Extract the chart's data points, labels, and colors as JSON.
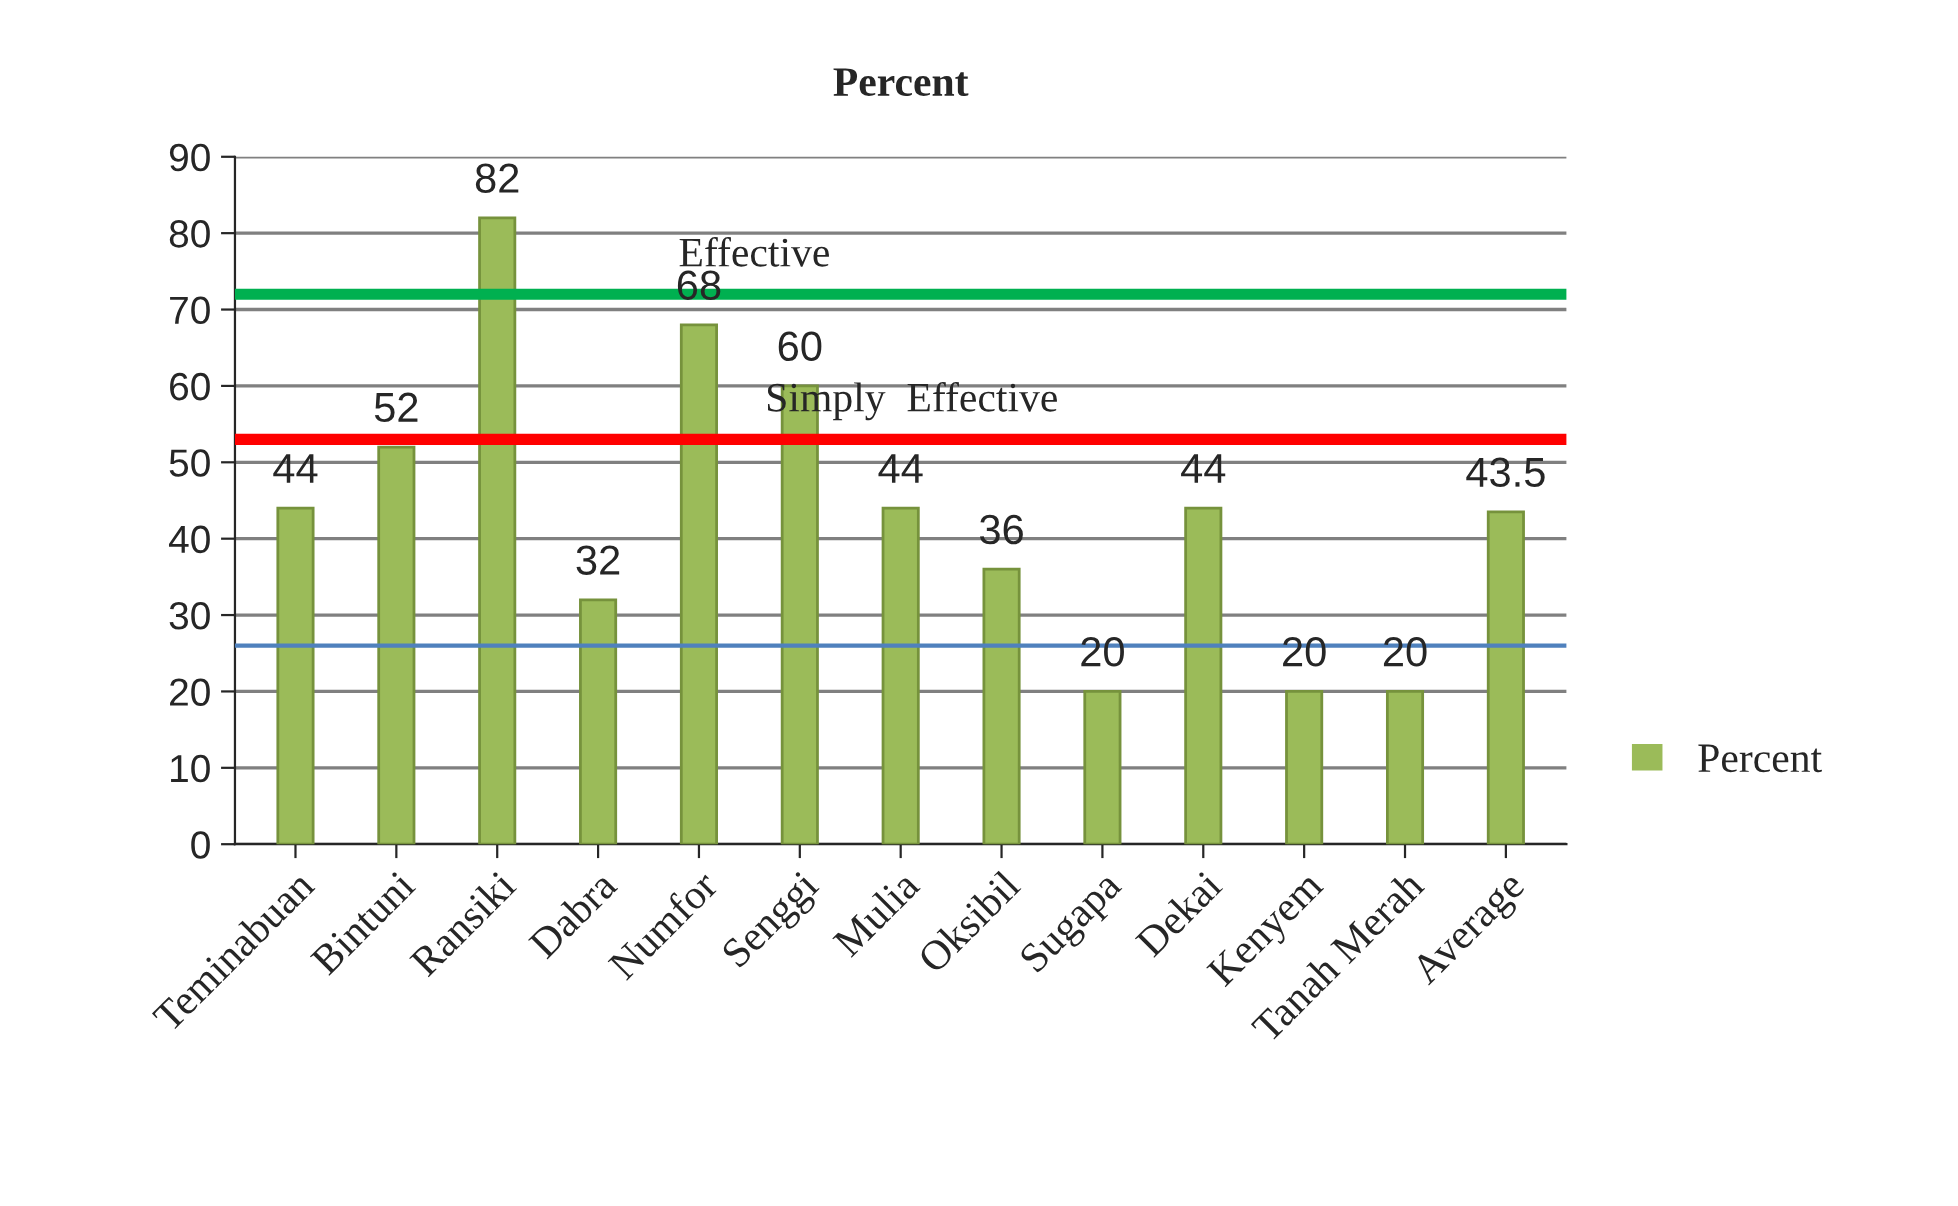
{
  "chart_data": {
    "type": "bar",
    "title": "Percent",
    "categories": [
      "Teminabuan",
      "Bintuni",
      "Ransiki",
      "Dabra",
      "Numfor",
      "Senggi",
      "Mulia",
      "Oksibil",
      "Sugapa",
      "Dekai",
      "Kenyem",
      "Tanah Merah",
      "Average"
    ],
    "series": [
      {
        "name": "Percent",
        "color": "#9bbb59",
        "values": [
          44,
          52,
          82,
          32,
          68,
          60,
          44,
          36,
          20,
          44,
          20,
          20,
          43.5
        ]
      }
    ],
    "ylim": [
      0,
      90
    ],
    "yticks": [
      0,
      10,
      20,
      30,
      40,
      50,
      60,
      70,
      80,
      90
    ],
    "grid": "y",
    "legend": "right",
    "data_labels": true,
    "ref_lines": [
      {
        "axis": "y",
        "value": 72,
        "label": "Effective",
        "color": "#00b050"
      },
      {
        "axis": "y",
        "value": 53,
        "label": "Simply  Effective",
        "color": "#ff0000"
      },
      {
        "axis": "y",
        "value": 26,
        "label": null,
        "color": "#4f81bd"
      }
    ]
  }
}
